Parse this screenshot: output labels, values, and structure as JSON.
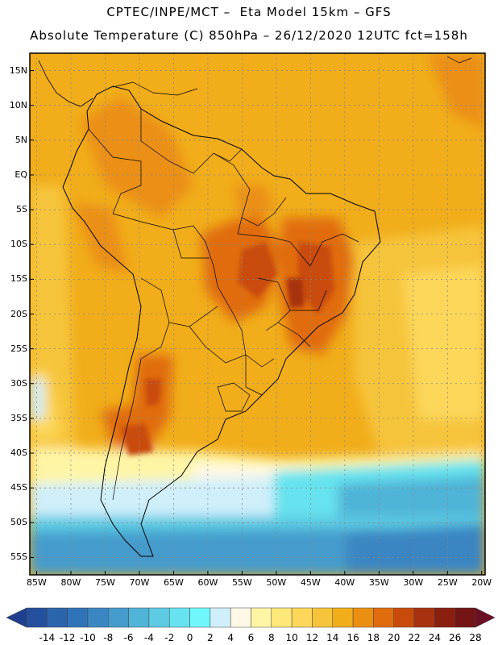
{
  "header": {
    "line1": "CPTEC/INPE/MCT –  Eta Model 15km – GFS",
    "line2": "Absolute Temperature (C) 850hPa – 26/12/2020 12UTC fct=158h"
  },
  "map": {
    "variable": "Absolute Temperature",
    "units": "C",
    "level": "850hPa",
    "lat_labels": [
      "15N",
      "10N",
      "5N",
      "EQ",
      "5S",
      "10S",
      "15S",
      "20S",
      "25S",
      "30S",
      "35S",
      "40S",
      "45S",
      "50S",
      "55S"
    ],
    "lat_values": [
      15,
      10,
      5,
      0,
      -5,
      -10,
      -15,
      -20,
      -25,
      -30,
      -35,
      -40,
      -45,
      -50,
      -55
    ],
    "lon_labels": [
      "85W",
      "80W",
      "75W",
      "70W",
      "65W",
      "60W",
      "55W",
      "50W",
      "45W",
      "40W",
      "35W",
      "30W",
      "25W",
      "20W"
    ],
    "lon_values": [
      -85,
      -80,
      -75,
      -70,
      -65,
      -60,
      -55,
      -50,
      -45,
      -40,
      -35,
      -30,
      -25,
      -20
    ],
    "lat_range": [
      -57.5,
      17.5
    ],
    "lon_range": [
      -86,
      -19.5
    ]
  },
  "colorbar": {
    "labels": [
      "-14",
      "-12",
      "-10",
      "-8",
      "-6",
      "-4",
      "-2",
      "0",
      "2",
      "4",
      "6",
      "8",
      "10",
      "12",
      "14",
      "16",
      "18",
      "20",
      "22",
      "24",
      "26",
      "28"
    ],
    "colors": [
      "#1f3f8f",
      "#24509d",
      "#2a64ab",
      "#2f74b8",
      "#3a86c2",
      "#449bcc",
      "#4fb4d8",
      "#5ccbe3",
      "#66e3ee",
      "#70f7fb",
      "#cfeffa",
      "#fff8e6",
      "#fff5a5",
      "#ffe87a",
      "#fcd75a",
      "#f6c43a",
      "#f1ad1a",
      "#eb8f12",
      "#e06c0d",
      "#c94b0b",
      "#a83210",
      "#8a1f10",
      "#731515",
      "#6b0f25"
    ]
  }
}
